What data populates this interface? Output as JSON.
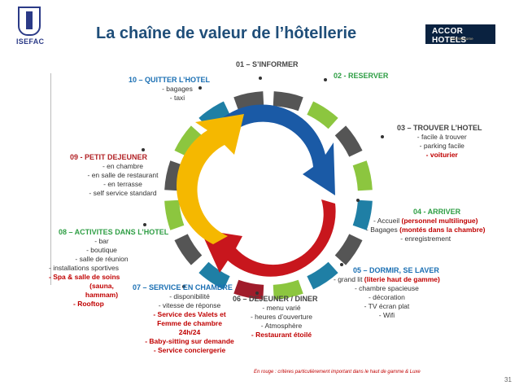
{
  "title": "La chaîne de valeur de l’hôtellerie",
  "logo_isefac": "ISEFAC",
  "logo_accor": {
    "name": "ACCOR HOTELS",
    "tagline": "Feel Welcome"
  },
  "footnote": "En rouge : critères particulièrement important dans le haut de gamme & Luxe",
  "page_number": "31",
  "colors": {
    "title": "#1f4e79",
    "highlight": "#c00000",
    "blue": "#1a6fb3",
    "green": "#8cc63f",
    "gray": "#555555",
    "teal": "#1f7fa5",
    "darkred": "#a01c2b"
  },
  "stages": {
    "s01": {
      "title": "01 – S’INFORMER"
    },
    "s02": {
      "title": "02 - RESERVER"
    },
    "s03": {
      "title": "03 – TROUVER L’HOTEL",
      "items": [
        "- facile à trouver",
        "-   parking facile",
        "-   voiturier"
      ]
    },
    "s04": {
      "title": "04 - ARRIVER",
      "items": [
        "- Accueil ",
        "(personnel multilingue)",
        "- Bagages ",
        "(montés dans la chambre)",
        "- enregistrement"
      ]
    },
    "s05": {
      "title": "05 – DORMIR, SE LAVER",
      "items": [
        "- grand lit ",
        "(literie haut de gamme)",
        "- chambre spacieuse",
        "- décoration",
        "-   TV écran plat",
        "-   Wifi"
      ]
    },
    "s06": {
      "title": "06 – DEJEUNER / DINER",
      "items": [
        "- menu varié",
        "- heures d’ouverture",
        "-   Atmosphère",
        "-   Restaurant étoilé"
      ]
    },
    "s07": {
      "title": "07 – SERVICE EN CHAMBRE",
      "items": [
        "- disponibilité",
        "-   vitesse de réponse",
        "-   Service des Valets et",
        "Femme de chambre",
        "24h/24",
        "-   Baby-sitting sur demande",
        "-   Service conciergerie"
      ]
    },
    "s08": {
      "title": "08 – ACTIVITES DANS L’HOTEL",
      "items": [
        "- bar",
        "- boutique",
        "- salle de réunion",
        "-   installations sportives",
        "-   Spa & salle de soins",
        "(sauna,",
        "hammam)",
        "-   Rooftop"
      ]
    },
    "s09": {
      "title": "09 - PETIT DEJEUNER",
      "items": [
        "- en chambre",
        "- en salle de restaurant",
        "- en terrasse",
        "- self service standard"
      ]
    },
    "s10": {
      "title": "10 – QUITTER L’HOTEL",
      "items": [
        "- bagages",
        "- taxi"
      ]
    }
  }
}
